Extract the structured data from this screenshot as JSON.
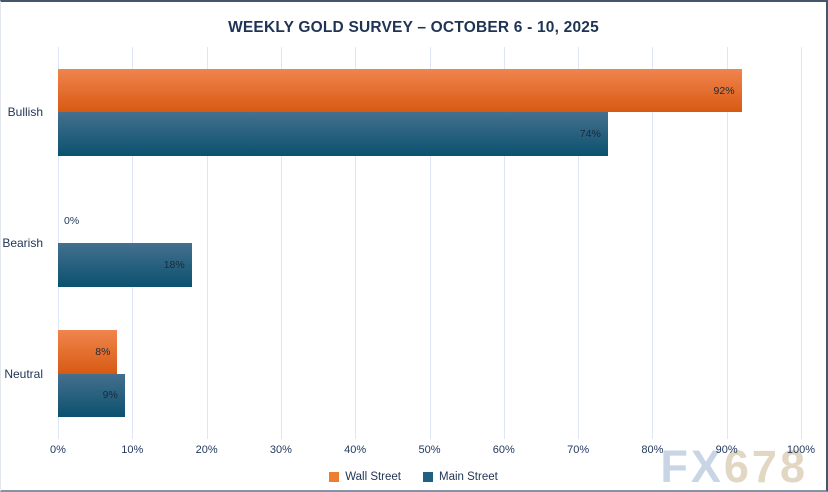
{
  "chart_data": {
    "type": "bar",
    "orientation": "horizontal",
    "title": "WEEKLY GOLD SURVEY – OCTOBER 6 - 10, 2025",
    "categories": [
      "Bullish",
      "Bearish",
      "Neutral"
    ],
    "series": [
      {
        "name": "Wall Street",
        "values": [
          92,
          0,
          8
        ],
        "labels": [
          "92%",
          "0%",
          "8%"
        ],
        "color": "#ED7D31",
        "gradient_top": "#F0854E",
        "gradient_bottom": "#D75A12"
      },
      {
        "name": "Main Street",
        "values": [
          74,
          18,
          9
        ],
        "labels": [
          "74%",
          "18%",
          "9%"
        ],
        "color": "#20617F",
        "gradient_top": "#44708E",
        "gradient_bottom": "#0B516F"
      }
    ],
    "xlim": [
      0,
      100
    ],
    "x_ticks": [
      "0%",
      "10%",
      "20%",
      "30%",
      "40%",
      "50%",
      "60%",
      "70%",
      "80%",
      "90%",
      "100%"
    ],
    "grid": true,
    "legend_position": "bottom"
  },
  "watermark": {
    "fx": "FX",
    "num": "678"
  },
  "colors": {
    "title_text": "#1F3454",
    "axis_text": "#223A5E",
    "grid_line": "#DCE6F4",
    "value_label": "#1B2A3A",
    "frame_border": "#46566A",
    "watermark_fx": "#C7D5E5",
    "watermark_num": "#E2D7C3"
  }
}
